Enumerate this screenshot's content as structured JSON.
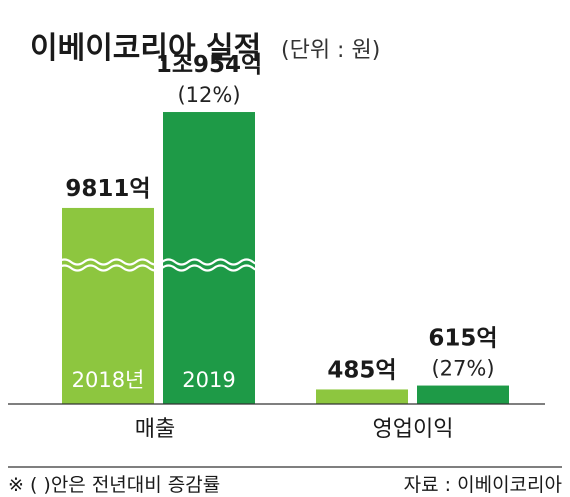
{
  "chart_data": {
    "type": "bar",
    "title": "이베이코리아 실적",
    "unit": "(단위 : 원)",
    "categories": [
      "매출",
      "영업이익"
    ],
    "series": [
      {
        "name": "2018년",
        "color": "#8dc63f",
        "values": [
          981100000000,
          48500000000
        ],
        "value_labels": [
          "9811억",
          "485억"
        ],
        "change_labels": [
          "",
          ""
        ]
      },
      {
        "name": "2019",
        "color": "#1e9a47",
        "values": [
          1095400000000,
          61500000000
        ],
        "value_labels": [
          "1조954억",
          "615억"
        ],
        "change_labels": [
          "(12%)",
          "(27%)"
        ]
      }
    ],
    "axis_break": true,
    "footnote": "※ ( )안은 전년대비 증감률",
    "source": "자료 : 이베이코리아"
  }
}
